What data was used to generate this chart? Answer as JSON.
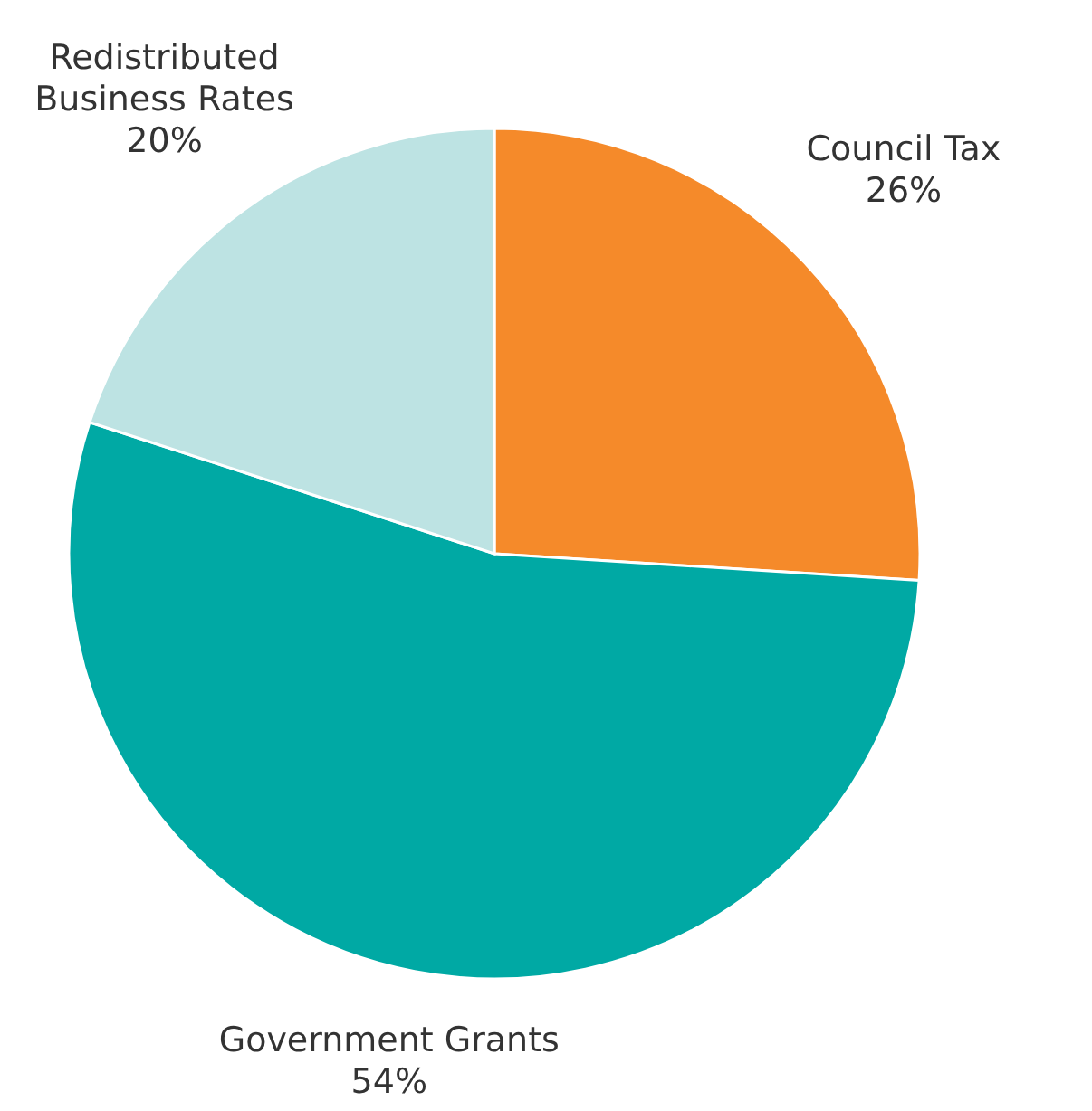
{
  "chart_data": {
    "type": "pie",
    "categories": [
      "Council Tax",
      "Government Grants",
      "Redistributed Business Rates"
    ],
    "values": [
      26,
      54,
      20
    ],
    "colors": [
      "#f58a2a",
      "#00a9a4",
      "#bde3e3"
    ],
    "value_labels": [
      "26%",
      "54%",
      "20%"
    ]
  }
}
